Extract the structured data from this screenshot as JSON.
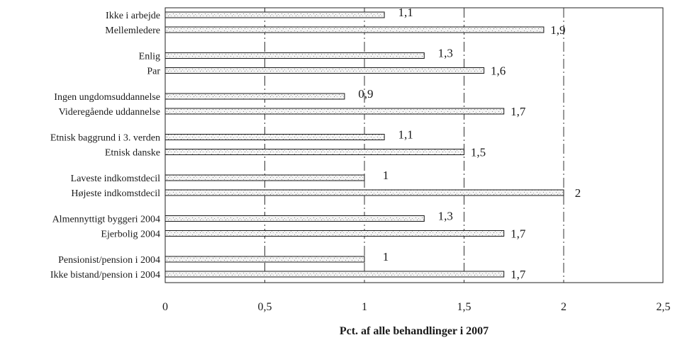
{
  "chart_data": {
    "type": "bar",
    "orientation": "horizontal",
    "xlabel": "Pct. af alle behandlinger i 2007",
    "xlim": [
      0,
      2.5
    ],
    "xticks": [
      "0",
      "0,5",
      "1",
      "1,5",
      "2",
      "2,5"
    ],
    "grid": "vertical dash-dot lines at each tick",
    "groups": [
      {
        "bars": [
          {
            "label": "Ikke i arbejde",
            "value": 1.1,
            "value_label": "1,1"
          },
          {
            "label": "Mellemledere",
            "value": 1.9,
            "value_label": "1,9"
          }
        ]
      },
      {
        "bars": [
          {
            "label": "Enlig",
            "value": 1.3,
            "value_label": "1,3"
          },
          {
            "label": "Par",
            "value": 1.6,
            "value_label": "1,6"
          }
        ]
      },
      {
        "bars": [
          {
            "label": "Ingen ungdomsuddannelse",
            "value": 0.9,
            "value_label": "0,9"
          },
          {
            "label": "Videregående uddannelse",
            "value": 1.7,
            "value_label": "1,7"
          }
        ]
      },
      {
        "bars": [
          {
            "label": "Etnisk baggrund i 3. verden",
            "value": 1.1,
            "value_label": "1,1"
          },
          {
            "label": "Etnisk danske",
            "value": 1.5,
            "value_label": "1,5"
          }
        ]
      },
      {
        "bars": [
          {
            "label": "Laveste indkomstdecil",
            "value": 1.0,
            "value_label": "1"
          },
          {
            "label": "Højeste indkomstdecil",
            "value": 2.0,
            "value_label": "2"
          }
        ]
      },
      {
        "bars": [
          {
            "label": "Almennyttigt byggeri 2004",
            "value": 1.3,
            "value_label": "1,3"
          },
          {
            "label": "Ejerbolig 2004",
            "value": 1.7,
            "value_label": "1,7"
          }
        ]
      },
      {
        "bars": [
          {
            "label": "Pensionist/pension i 2004",
            "value": 1.0,
            "value_label": "1"
          },
          {
            "label": "Ikke bistand/pension i 2004",
            "value": 1.7,
            "value_label": "1,7"
          }
        ]
      }
    ]
  }
}
